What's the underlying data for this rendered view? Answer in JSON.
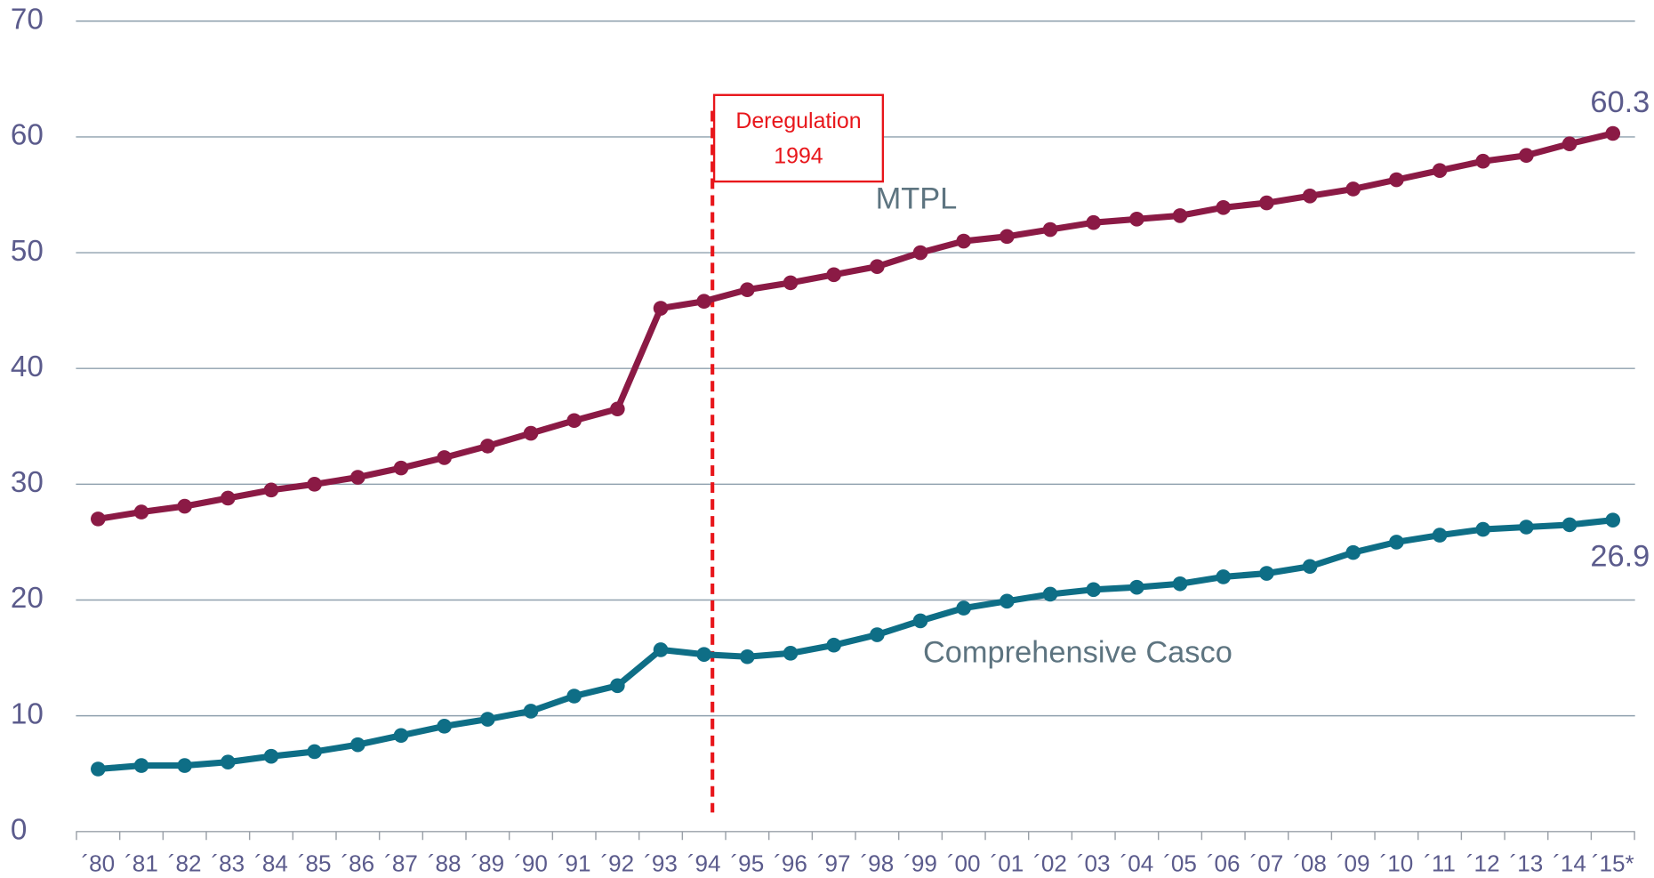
{
  "chart_data": {
    "type": "line",
    "categories": [
      "´80",
      "´81",
      "´82",
      "´83",
      "´84",
      "´85",
      "´86",
      "´87",
      "´88",
      "´89",
      "´90",
      "´91",
      "´92",
      "´93",
      "´94",
      "´95",
      "´96",
      "´97",
      "´98",
      "´99",
      "´00",
      "´01",
      "´02",
      "´03",
      "´04",
      "´05",
      "´06",
      "´07",
      "´08",
      "´09",
      "´10",
      "´11",
      "´12",
      "´13",
      "´14",
      "´15*"
    ],
    "series": [
      {
        "name": "MTPL",
        "color": "#8b1a45",
        "values": [
          27.0,
          27.6,
          28.1,
          28.8,
          29.5,
          30.0,
          30.6,
          31.4,
          32.3,
          33.3,
          34.4,
          35.5,
          36.5,
          45.2,
          45.8,
          46.8,
          47.4,
          48.1,
          48.8,
          50.0,
          51.0,
          51.4,
          52.0,
          52.6,
          52.9,
          53.2,
          53.9,
          54.3,
          54.9,
          55.5,
          56.3,
          57.1,
          57.9,
          58.4,
          59.4,
          60.3
        ]
      },
      {
        "name": "Comprehensive Casco",
        "color": "#0e6e86",
        "values": [
          5.4,
          5.7,
          5.7,
          6.0,
          6.5,
          6.9,
          7.5,
          8.3,
          9.1,
          9.7,
          10.4,
          11.7,
          12.6,
          15.7,
          15.3,
          15.1,
          15.4,
          16.1,
          17.0,
          18.2,
          19.3,
          19.9,
          20.5,
          20.9,
          21.1,
          21.4,
          22.0,
          22.3,
          22.9,
          24.1,
          25.0,
          25.6,
          26.1,
          26.3,
          26.5,
          26.9
        ]
      }
    ],
    "ylim": [
      0,
      70
    ],
    "yticks": [
      0,
      10,
      20,
      30,
      40,
      50,
      60,
      70
    ],
    "grid": true,
    "annotation": {
      "text": [
        "Deregulation",
        "1994"
      ],
      "category": "´94",
      "color": "#e8161b"
    }
  }
}
